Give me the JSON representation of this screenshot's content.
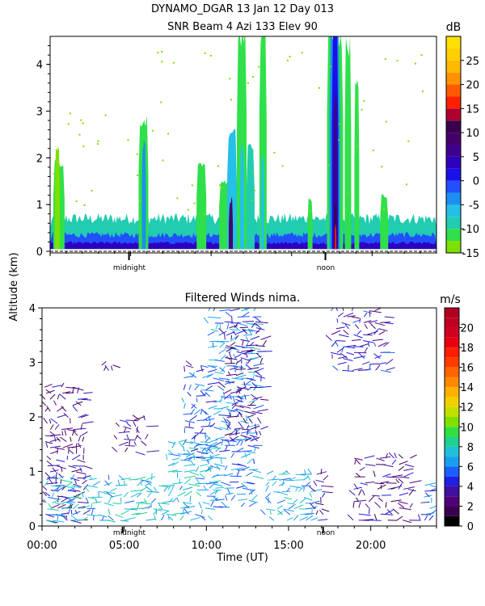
{
  "header": {
    "line1": "DYNAMO_DGAR  13 Jan 12 Day 013",
    "line2": "SNR Beam 4 Azi 133 Elev 90"
  },
  "shared_axes": {
    "ylabel": "Altitude (km)",
    "xlabel": "Time (UT)",
    "x_tick_labels": [
      "00:00",
      "05:00",
      "10:00",
      "15:00",
      "20:00"
    ],
    "markers": [
      "midnight",
      "noon"
    ]
  },
  "chart_data": [
    {
      "type": "heatmap",
      "title": "SNR Beam 4 Azi 133 Elev 90",
      "xlim": [
        0,
        24
      ],
      "ylim": [
        0,
        4.6
      ],
      "y_ticks": [
        0,
        1,
        2,
        3,
        4
      ],
      "colorbar": {
        "unit": "dB",
        "ticks": [
          -15,
          -10,
          -5,
          0,
          5,
          10,
          15,
          20,
          25
        ],
        "levels": [
          {
            "from": -15,
            "to": -12.5,
            "color": "#7ee000"
          },
          {
            "from": -12.5,
            "to": -10,
            "color": "#2fe04a"
          },
          {
            "from": -10,
            "to": -7.5,
            "color": "#21ccb0"
          },
          {
            "from": -7.5,
            "to": -5,
            "color": "#24c0e8"
          },
          {
            "from": -5,
            "to": -2.5,
            "color": "#1d8ff0"
          },
          {
            "from": -2.5,
            "to": 0,
            "color": "#2250ff"
          },
          {
            "from": 0,
            "to": 2.5,
            "color": "#1a10e8"
          },
          {
            "from": 2.5,
            "to": 5,
            "color": "#2d00c0"
          },
          {
            "from": 5,
            "to": 7.5,
            "color": "#3f0090"
          },
          {
            "from": 7.5,
            "to": 10,
            "color": "#45006a"
          },
          {
            "from": 10,
            "to": 12.5,
            "color": "#3a004e"
          },
          {
            "from": 12.5,
            "to": 15,
            "color": "#b00030"
          },
          {
            "from": 15,
            "to": 17.5,
            "color": "#ff2000"
          },
          {
            "from": 17.5,
            "to": 20,
            "color": "#ff5a00"
          },
          {
            "from": 20,
            "to": 22.5,
            "color": "#ff9400"
          },
          {
            "from": 22.5,
            "to": 25,
            "color": "#ffba00"
          },
          {
            "from": 25,
            "to": 27.5,
            "color": "#ffd000"
          },
          {
            "from": 27.5,
            "to": 30,
            "color": "#ffe000"
          }
        ]
      },
      "features": [
        {
          "t0": 0.0,
          "t1": 24.0,
          "top": 0.7,
          "snr": -10
        },
        {
          "t0": 0.0,
          "t1": 24.0,
          "top": 0.35,
          "snr": -2
        },
        {
          "t0": 0.0,
          "t1": 24.0,
          "top": 0.18,
          "snr": 3
        },
        {
          "t0": 0.2,
          "t1": 0.9,
          "top": 1.9,
          "snr": -11
        },
        {
          "t0": 0.3,
          "t1": 0.6,
          "top": 2.2,
          "snr": -13
        },
        {
          "t0": 5.5,
          "t1": 6.1,
          "top": 2.8,
          "snr": -12
        },
        {
          "t0": 5.7,
          "t1": 5.95,
          "top": 2.3,
          "snr": -5
        },
        {
          "t0": 9.1,
          "t1": 9.7,
          "top": 1.8,
          "snr": -12
        },
        {
          "t0": 10.5,
          "t1": 11.1,
          "top": 1.5,
          "snr": -12
        },
        {
          "t0": 11.0,
          "t1": 11.6,
          "top": 2.5,
          "snr": -7
        },
        {
          "t0": 11.1,
          "t1": 11.35,
          "top": 1.0,
          "snr": 8
        },
        {
          "t0": 11.6,
          "t1": 12.2,
          "top": 4.6,
          "snr": -11
        },
        {
          "t0": 11.8,
          "t1": 12.05,
          "top": 2.2,
          "snr": -6
        },
        {
          "t0": 12.2,
          "t1": 12.7,
          "top": 2.3,
          "snr": -10
        },
        {
          "t0": 13.0,
          "t1": 13.45,
          "top": 4.6,
          "snr": -11
        },
        {
          "t0": 13.1,
          "t1": 13.3,
          "top": 2.0,
          "snr": -7
        },
        {
          "t0": 17.2,
          "t1": 18.2,
          "top": 4.6,
          "snr": -11
        },
        {
          "t0": 17.35,
          "t1": 18.0,
          "top": 4.6,
          "snr": -5
        },
        {
          "t0": 17.5,
          "t1": 17.9,
          "top": 4.6,
          "snr": 0
        },
        {
          "t0": 17.6,
          "t1": 17.85,
          "top": 3.3,
          "snr": 6
        },
        {
          "t0": 17.65,
          "t1": 17.8,
          "top": 1.0,
          "snr": 11
        },
        {
          "t0": 17.68,
          "t1": 17.78,
          "top": 0.55,
          "snr": 16
        },
        {
          "t0": 18.3,
          "t1": 18.7,
          "top": 4.4,
          "snr": -12
        },
        {
          "t0": 18.9,
          "t1": 19.2,
          "top": 3.5,
          "snr": -12
        },
        {
          "t0": 16.0,
          "t1": 16.3,
          "top": 1.1,
          "snr": -12
        },
        {
          "t0": 20.5,
          "t1": 21.0,
          "top": 1.2,
          "snr": -12
        }
      ]
    },
    {
      "type": "scatter",
      "title": "Filtered Winds nima.",
      "xlim": [
        0,
        24
      ],
      "ylim": [
        0,
        4.0
      ],
      "y_ticks": [
        0,
        1,
        2,
        3,
        4
      ],
      "colorbar": {
        "unit": "m/s",
        "ticks": [
          0,
          2,
          4,
          6,
          8,
          10,
          12,
          14,
          16,
          18,
          20
        ],
        "levels": [
          {
            "from": 0,
            "to": 1,
            "color": "#000000"
          },
          {
            "from": 1,
            "to": 2,
            "color": "#3a0050"
          },
          {
            "from": 2,
            "to": 3,
            "color": "#50007a"
          },
          {
            "from": 3,
            "to": 4,
            "color": "#4010a0"
          },
          {
            "from": 4,
            "to": 5,
            "color": "#2020e0"
          },
          {
            "from": 5,
            "to": 6,
            "color": "#1a60ff"
          },
          {
            "from": 6,
            "to": 7,
            "color": "#18a0f0"
          },
          {
            "from": 7,
            "to": 8,
            "color": "#20c0d8"
          },
          {
            "from": 8,
            "to": 9,
            "color": "#20d090"
          },
          {
            "from": 9,
            "to": 10,
            "color": "#30e040"
          },
          {
            "from": 10,
            "to": 11,
            "color": "#80e000"
          },
          {
            "from": 11,
            "to": 12,
            "color": "#c0e000"
          },
          {
            "from": 12,
            "to": 13,
            "color": "#f0d000"
          },
          {
            "from": 13,
            "to": 14,
            "color": "#ffb000"
          },
          {
            "from": 14,
            "to": 15,
            "color": "#ff8a00"
          },
          {
            "from": 15,
            "to": 16,
            "color": "#ff6400"
          },
          {
            "from": 16,
            "to": 17,
            "color": "#ff3c00"
          },
          {
            "from": 17,
            "to": 18,
            "color": "#ff1e00"
          },
          {
            "from": 18,
            "to": 19,
            "color": "#e80010"
          },
          {
            "from": 19,
            "to": 20,
            "color": "#d00020"
          },
          {
            "from": 20,
            "to": 21,
            "color": "#c00020"
          },
          {
            "from": 21,
            "to": 22,
            "color": "#b00020"
          }
        ]
      },
      "wind_clusters": [
        {
          "t0": 0.1,
          "t1": 2.6,
          "z0": 0.05,
          "z1": 2.6,
          "speed": 3
        },
        {
          "t0": 0.1,
          "t1": 2.6,
          "z0": 0.05,
          "z1": 0.9,
          "speed": 7
        },
        {
          "t0": 2.6,
          "t1": 7.5,
          "z0": 0.05,
          "z1": 0.9,
          "speed": 7
        },
        {
          "t0": 4.5,
          "t1": 6.5,
          "z0": 1.3,
          "z1": 2.0,
          "speed": 3
        },
        {
          "t0": 7.5,
          "t1": 10.5,
          "z0": 0.05,
          "z1": 1.6,
          "speed": 7
        },
        {
          "t0": 8.5,
          "t1": 10.2,
          "z0": 1.2,
          "z1": 3.0,
          "speed": 5
        },
        {
          "t0": 10.0,
          "t1": 13.0,
          "z0": 0.3,
          "z1": 4.0,
          "speed": 6
        },
        {
          "t0": 11.0,
          "t1": 13.5,
          "z0": 1.5,
          "z1": 3.8,
          "speed": 3
        },
        {
          "t0": 13.5,
          "t1": 16.5,
          "z0": 0.05,
          "z1": 1.0,
          "speed": 7
        },
        {
          "t0": 16.5,
          "t1": 17.2,
          "z0": 0.05,
          "z1": 1.0,
          "speed": 3
        },
        {
          "t0": 18.8,
          "t1": 22.5,
          "z0": 0.05,
          "z1": 1.3,
          "speed": 3
        },
        {
          "t0": 22.8,
          "t1": 23.8,
          "z0": 0.05,
          "z1": 0.8,
          "speed": 5
        },
        {
          "t0": 17.5,
          "t1": 21.0,
          "z0": 2.8,
          "z1": 4.0,
          "speed": 4
        },
        {
          "t0": 3.5,
          "t1": 4.5,
          "z0": 2.8,
          "z1": 3.0,
          "speed": 3
        }
      ]
    }
  ]
}
